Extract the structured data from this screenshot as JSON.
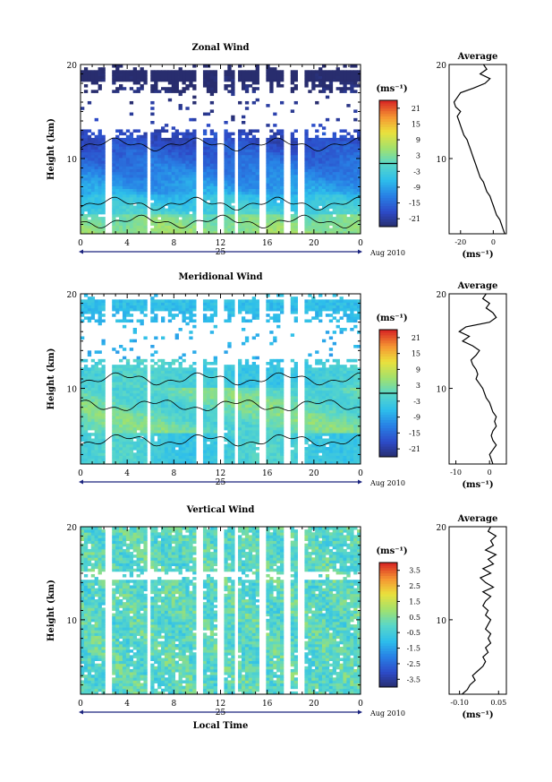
{
  "chart_data": [
    {
      "type": "heatmap",
      "title": "Zonal Wind",
      "ylabel": "Height (km)",
      "xlabel": "",
      "x_ticks": [
        "0",
        "4",
        "8",
        "12",
        "16",
        "20",
        "0"
      ],
      "y_ticks": [
        "20",
        "10"
      ],
      "xlim": [
        0,
        24
      ],
      "ylim": [
        2,
        20
      ],
      "date_label": "25",
      "month_label": "Aug 2010",
      "colorbar": {
        "unit": "(ms⁻¹)",
        "ticks": [
          "21",
          "15",
          "9",
          "3",
          "-3",
          "-9",
          "-15",
          "-21"
        ],
        "range": [
          -24,
          24
        ],
        "zero_line": true
      },
      "field": "zonal",
      "average": {
        "title": "Average",
        "unit": "(ms⁻¹)",
        "x_ticks": [
          "-20",
          "0"
        ],
        "y_ticks": [
          "20",
          "10"
        ],
        "xlim": [
          -27,
          8
        ],
        "profile": [
          [
            2.0,
            7
          ],
          [
            2.5,
            6
          ],
          [
            3,
            5
          ],
          [
            3.5,
            4
          ],
          [
            4,
            2
          ],
          [
            4.5,
            1
          ],
          [
            5,
            0
          ],
          [
            5.5,
            -1
          ],
          [
            6,
            -2
          ],
          [
            6.5,
            -4
          ],
          [
            7,
            -5
          ],
          [
            7.5,
            -6
          ],
          [
            8,
            -8
          ],
          [
            8.5,
            -9
          ],
          [
            9,
            -10
          ],
          [
            9.5,
            -11
          ],
          [
            10,
            -12
          ],
          [
            10.5,
            -13
          ],
          [
            11,
            -14
          ],
          [
            11.5,
            -15
          ],
          [
            12,
            -16
          ],
          [
            12.5,
            -18
          ],
          [
            13,
            -19
          ],
          [
            13.5,
            -20
          ],
          [
            14,
            -21
          ],
          [
            14.5,
            -22
          ],
          [
            15,
            -20
          ],
          [
            15.5,
            -23
          ],
          [
            16,
            -24
          ],
          [
            16.5,
            -22
          ],
          [
            17,
            -20
          ],
          [
            17.5,
            -12
          ],
          [
            18,
            -5
          ],
          [
            18.5,
            -2
          ],
          [
            19,
            -8
          ],
          [
            19.5,
            -4
          ],
          [
            20,
            -6
          ]
        ]
      }
    },
    {
      "type": "heatmap",
      "title": "Meridional Wind",
      "ylabel": "Height (km)",
      "xlabel": "",
      "x_ticks": [
        "0",
        "4",
        "8",
        "12",
        "16",
        "20",
        "0"
      ],
      "y_ticks": [
        "20",
        "10"
      ],
      "xlim": [
        0,
        24
      ],
      "ylim": [
        2,
        20
      ],
      "date_label": "25",
      "month_label": "Aug 2010",
      "colorbar": {
        "unit": "(ms⁻¹)",
        "ticks": [
          "21",
          "15",
          "9",
          "3",
          "-3",
          "-9",
          "-15",
          "-21"
        ],
        "range": [
          -24,
          24
        ],
        "zero_line": true
      },
      "field": "meridional",
      "average": {
        "title": "Average",
        "unit": "(ms⁻¹)",
        "x_ticks": [
          "-10",
          "0"
        ],
        "y_ticks": [
          "20",
          "10"
        ],
        "xlim": [
          -12,
          5
        ],
        "profile": [
          [
            2.0,
            1
          ],
          [
            2.5,
            0.5
          ],
          [
            3,
            0
          ],
          [
            3.5,
            1
          ],
          [
            4,
            2
          ],
          [
            4.5,
            1
          ],
          [
            5,
            0.5
          ],
          [
            5.5,
            1
          ],
          [
            6,
            2
          ],
          [
            6.5,
            1.5
          ],
          [
            7,
            2
          ],
          [
            7.5,
            1
          ],
          [
            8,
            0.5
          ],
          [
            8.5,
            0
          ],
          [
            9,
            -1
          ],
          [
            9.5,
            -1.5
          ],
          [
            10,
            -2
          ],
          [
            10.5,
            -3
          ],
          [
            11,
            -4
          ],
          [
            11.5,
            -3.5
          ],
          [
            12,
            -4
          ],
          [
            12.5,
            -5
          ],
          [
            13,
            -5.5
          ],
          [
            13.5,
            -4
          ],
          [
            14,
            -3
          ],
          [
            14.5,
            -5
          ],
          [
            15,
            -8
          ],
          [
            15.5,
            -6
          ],
          [
            16,
            -9
          ],
          [
            16.5,
            -7
          ],
          [
            17,
            0
          ],
          [
            17.5,
            2
          ],
          [
            18,
            1
          ],
          [
            18.5,
            -1
          ],
          [
            19,
            0
          ],
          [
            19.5,
            -2
          ],
          [
            20,
            -1
          ]
        ]
      }
    },
    {
      "type": "heatmap",
      "title": "Vertical Wind",
      "ylabel": "Height (km)",
      "xlabel": "Local Time",
      "x_ticks": [
        "0",
        "4",
        "8",
        "12",
        "16",
        "20",
        "0"
      ],
      "y_ticks": [
        "20",
        "10"
      ],
      "xlim": [
        0,
        24
      ],
      "ylim": [
        2,
        20
      ],
      "date_label": "25",
      "month_label": "Aug 2010",
      "colorbar": {
        "unit": "(ms⁻¹)",
        "ticks": [
          "3.5",
          "2.5",
          "1.5",
          "0.5",
          "-0.5",
          "-1.5",
          "-2.5",
          "-3.5"
        ],
        "range": [
          -4,
          4
        ],
        "zero_line": false
      },
      "field": "vertical",
      "average": {
        "title": "Average",
        "unit": "(ms⁻¹)",
        "x_ticks": [
          "-0.10",
          "0.05"
        ],
        "y_ticks": [
          "20",
          "10"
        ],
        "xlim": [
          -0.14,
          0.08
        ],
        "profile": [
          [
            2.0,
            -0.09
          ],
          [
            2.5,
            -0.07
          ],
          [
            3,
            -0.06
          ],
          [
            3.5,
            -0.04
          ],
          [
            4,
            -0.05
          ],
          [
            4.5,
            -0.03
          ],
          [
            5,
            -0.01
          ],
          [
            5.5,
            0.0
          ],
          [
            6,
            -0.01
          ],
          [
            6.5,
            0.01
          ],
          [
            7,
            0.0
          ],
          [
            7.5,
            0.02
          ],
          [
            8,
            0.01
          ],
          [
            8.5,
            0.02
          ],
          [
            9,
            0.0
          ],
          [
            9.5,
            0.01
          ],
          [
            10,
            0.02
          ],
          [
            10.5,
            0.0
          ],
          [
            11,
            0.01
          ],
          [
            11.5,
            -0.01
          ],
          [
            12,
            0.0
          ],
          [
            12.5,
            0.02
          ],
          [
            13,
            -0.01
          ],
          [
            13.5,
            0.03
          ],
          [
            14,
            0.0
          ],
          [
            14.5,
            -0.02
          ],
          [
            15,
            0.02
          ],
          [
            15.5,
            -0.01
          ],
          [
            16,
            0.03
          ],
          [
            16.5,
            0.01
          ],
          [
            17,
            0.04
          ],
          [
            17.5,
            0.0
          ],
          [
            18,
            0.03
          ],
          [
            18.5,
            0.02
          ],
          [
            19,
            0.04
          ],
          [
            19.5,
            0.01
          ],
          [
            20,
            0.02
          ]
        ]
      }
    }
  ]
}
